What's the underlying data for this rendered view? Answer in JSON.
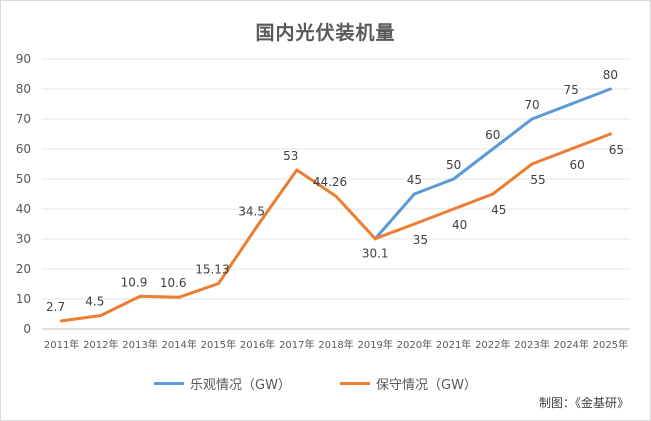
{
  "chart_data": {
    "type": "line",
    "title": "国内光伏装机量",
    "xlabel": "",
    "ylabel": "",
    "categories": [
      "2011年",
      "2012年",
      "2013年",
      "2014年",
      "2015年",
      "2016年",
      "2017年",
      "2018年",
      "2019年",
      "2020年",
      "2021年",
      "2022年",
      "2023年",
      "2024年",
      "2025年"
    ],
    "ylim": [
      0,
      90
    ],
    "yticks": [
      0,
      10,
      20,
      30,
      40,
      50,
      60,
      70,
      80,
      90
    ],
    "grid": true,
    "legend_position": "bottom",
    "series": [
      {
        "name": "乐观情况（GW）",
        "color": "#5b9bd5",
        "values": [
          null,
          null,
          null,
          null,
          null,
          null,
          null,
          null,
          30.1,
          45,
          50,
          60,
          70,
          75,
          80
        ],
        "labels": [
          null,
          null,
          null,
          null,
          null,
          null,
          null,
          null,
          null,
          "45",
          "50",
          "60",
          "70",
          "75",
          "80"
        ]
      },
      {
        "name": "保守情况（GW）",
        "color": "#ed7d31",
        "values": [
          2.7,
          4.5,
          10.9,
          10.6,
          15.13,
          34.5,
          53,
          44.26,
          30.1,
          35,
          40,
          45,
          55,
          60,
          65
        ],
        "labels": [
          "2.7",
          "4.5",
          "10.9",
          "10.6",
          "15.13",
          "34.5",
          "53",
          "44.26",
          "30.1",
          "35",
          "40",
          "45",
          "55",
          "60",
          "65"
        ]
      }
    ]
  },
  "source": "制图：《金基研》"
}
